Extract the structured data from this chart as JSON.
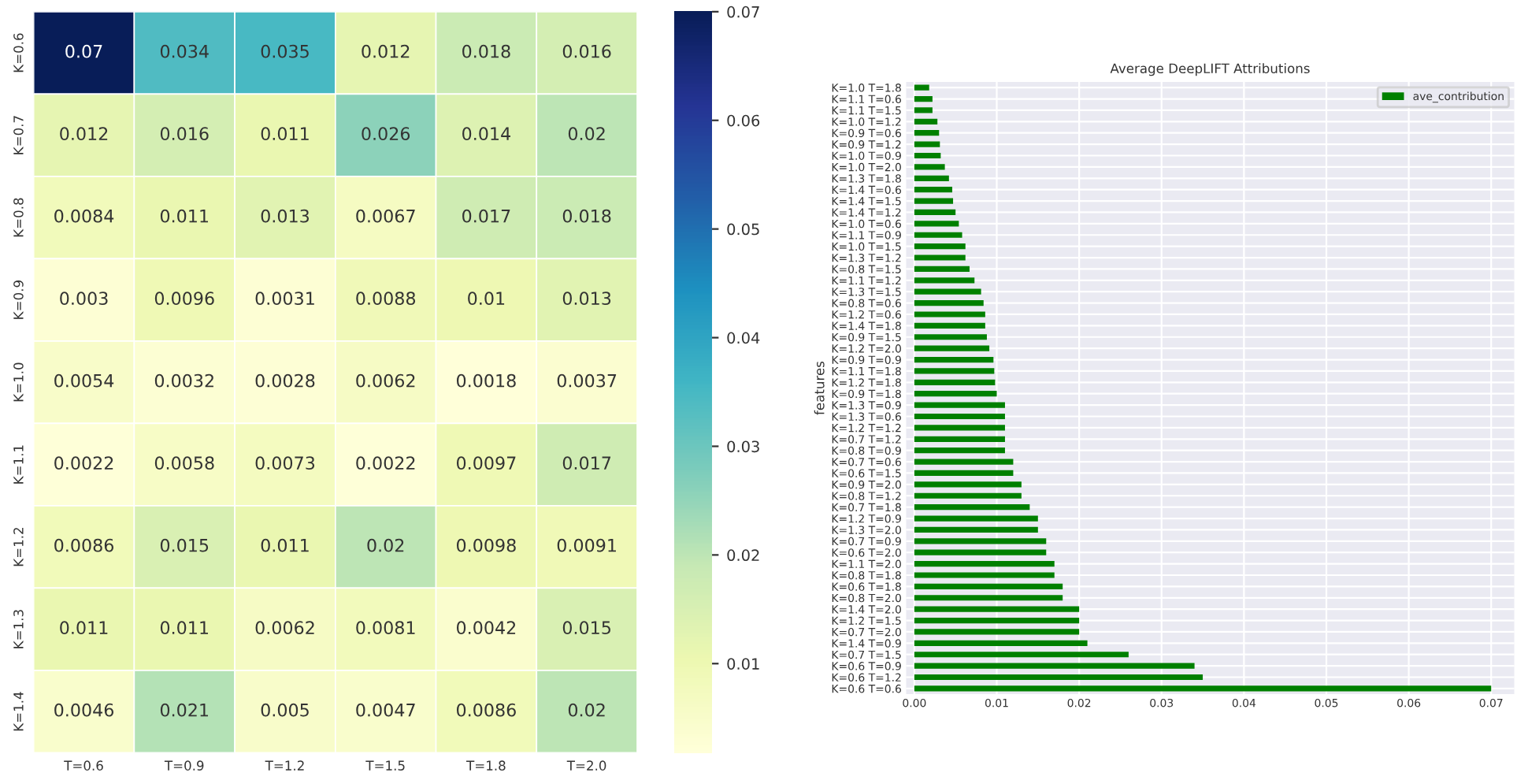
{
  "chart_data": [
    {
      "type": "heatmap",
      "categories": [
        "T=0.6",
        "T=0.9",
        "T=1.2",
        "T=1.5",
        "T=1.8",
        "T=2.0"
      ],
      "y_categories": [
        "K=0.6",
        "K=0.7",
        "K=0.8",
        "K=0.9",
        "K=1.0",
        "K=1.1",
        "K=1.2",
        "K=1.3",
        "K=1.4"
      ],
      "cells": [
        [
          0.07,
          0.034,
          0.035,
          0.012,
          0.018,
          0.016
        ],
        [
          0.012,
          0.016,
          0.011,
          0.026,
          0.014,
          0.02
        ],
        [
          0.0084,
          0.011,
          0.013,
          0.0067,
          0.017,
          0.018
        ],
        [
          0.003,
          0.0096,
          0.0031,
          0.0088,
          0.01,
          0.013
        ],
        [
          0.0054,
          0.0032,
          0.0028,
          0.0062,
          0.0018,
          0.0037
        ],
        [
          0.0022,
          0.0058,
          0.0073,
          0.0022,
          0.0097,
          0.017
        ],
        [
          0.0086,
          0.015,
          0.011,
          0.02,
          0.0098,
          0.0091
        ],
        [
          0.011,
          0.011,
          0.0062,
          0.0081,
          0.0042,
          0.015
        ],
        [
          0.0046,
          0.021,
          0.005,
          0.0047,
          0.0086,
          0.02
        ]
      ],
      "clim": [
        0.0018,
        0.07
      ],
      "cticks": [
        0.01,
        0.02,
        0.03,
        0.04,
        0.05,
        0.06,
        0.07
      ],
      "data_labels": true
    },
    {
      "type": "bar",
      "orientation": "horizontal",
      "title": "Average DeepLIFT Attributions",
      "ylabel": "features",
      "categories": [
        "K=1.0 T=1.8",
        "K=1.1 T=0.6",
        "K=1.1 T=1.5",
        "K=1.0 T=1.2",
        "K=0.9 T=0.6",
        "K=0.9 T=1.2",
        "K=1.0 T=0.9",
        "K=1.0 T=2.0",
        "K=1.3 T=1.8",
        "K=1.4 T=0.6",
        "K=1.4 T=1.5",
        "K=1.4 T=1.2",
        "K=1.0 T=0.6",
        "K=1.1 T=0.9",
        "K=1.0 T=1.5",
        "K=1.3 T=1.2",
        "K=0.8 T=1.5",
        "K=1.1 T=1.2",
        "K=1.3 T=1.5",
        "K=0.8 T=0.6",
        "K=1.2 T=0.6",
        "K=1.4 T=1.8",
        "K=0.9 T=1.5",
        "K=1.2 T=2.0",
        "K=0.9 T=0.9",
        "K=1.1 T=1.8",
        "K=1.2 T=1.8",
        "K=0.9 T=1.8",
        "K=1.3 T=0.9",
        "K=1.3 T=0.6",
        "K=1.2 T=1.2",
        "K=0.7 T=1.2",
        "K=0.8 T=0.9",
        "K=0.7 T=0.6",
        "K=0.6 T=1.5",
        "K=0.9 T=2.0",
        "K=0.8 T=1.2",
        "K=0.7 T=1.8",
        "K=1.2 T=0.9",
        "K=1.3 T=2.0",
        "K=0.7 T=0.9",
        "K=0.6 T=2.0",
        "K=1.1 T=2.0",
        "K=0.8 T=1.8",
        "K=0.6 T=1.8",
        "K=0.8 T=2.0",
        "K=1.4 T=2.0",
        "K=1.2 T=1.5",
        "K=0.7 T=2.0",
        "K=1.4 T=0.9",
        "K=0.7 T=1.5",
        "K=0.6 T=0.9",
        "K=0.6 T=1.2",
        "K=0.6 T=0.6"
      ],
      "series": [
        {
          "name": "ave_contribution",
          "color": "#008000",
          "values": [
            0.0018,
            0.0022,
            0.0022,
            0.0028,
            0.003,
            0.0031,
            0.0032,
            0.0037,
            0.0042,
            0.0046,
            0.0047,
            0.005,
            0.0054,
            0.0058,
            0.0062,
            0.0062,
            0.0067,
            0.0073,
            0.0081,
            0.0084,
            0.0086,
            0.0086,
            0.0088,
            0.0091,
            0.0096,
            0.0097,
            0.0098,
            0.01,
            0.011,
            0.011,
            0.011,
            0.011,
            0.011,
            0.012,
            0.012,
            0.013,
            0.013,
            0.014,
            0.015,
            0.015,
            0.016,
            0.016,
            0.017,
            0.017,
            0.018,
            0.018,
            0.02,
            0.02,
            0.02,
            0.021,
            0.026,
            0.034,
            0.035,
            0.07
          ]
        }
      ],
      "xlim": [
        -0.001,
        0.0728
      ],
      "xticks": [
        {
          "value": 0,
          "label": "0.00"
        },
        {
          "value": 0.01,
          "label": "0.01"
        },
        {
          "value": 0.02,
          "label": "0.02"
        },
        {
          "value": 0.03,
          "label": "0.03"
        },
        {
          "value": 0.04,
          "label": "0.04"
        },
        {
          "value": 0.05,
          "label": "0.05"
        },
        {
          "value": 0.06,
          "label": "0.06"
        },
        {
          "value": 0.07,
          "label": "0.07"
        }
      ],
      "grid": true,
      "legend": "top right"
    }
  ]
}
